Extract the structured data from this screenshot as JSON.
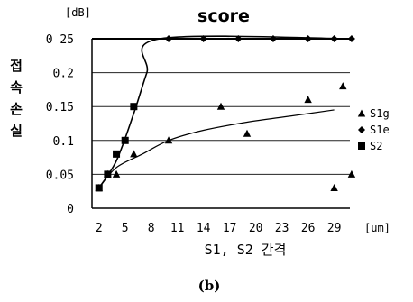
{
  "chart_data": {
    "type": "scatter",
    "title": "score",
    "ylabel": "접속손실",
    "yunit": "[dB]",
    "xlabel": "S1, S2 간격",
    "xunit": "[um]",
    "caption": "(b)",
    "x_ticks": [
      "2",
      "5",
      "8",
      "11",
      "14",
      "17",
      "20",
      "23",
      "26",
      "29"
    ],
    "y_ticks": [
      "0",
      "0.05",
      "0.1",
      "0.15",
      "0.2",
      "0 25"
    ],
    "xlim": [
      1.2,
      30.8
    ],
    "ylim": [
      0,
      0.25
    ],
    "grid": "horizontal",
    "legend_position": "right",
    "series": [
      {
        "name": "S1g",
        "marker": "triangle",
        "points": [
          [
            2,
            0.03
          ],
          [
            3,
            0.05
          ],
          [
            4,
            0.05
          ],
          [
            6,
            0.08
          ],
          [
            10,
            0.1
          ],
          [
            16,
            0.15
          ],
          [
            19,
            0.11
          ],
          [
            26,
            0.16
          ],
          [
            29,
            0.03
          ],
          [
            30,
            0.18
          ],
          [
            31,
            0.05
          ]
        ]
      },
      {
        "name": "S1e",
        "marker": "diamond",
        "points": [
          [
            10,
            0.25
          ],
          [
            14,
            0.25
          ],
          [
            18,
            0.25
          ],
          [
            22,
            0.25
          ],
          [
            26,
            0.25
          ],
          [
            29,
            0.25
          ],
          [
            31,
            0.25
          ]
        ]
      },
      {
        "name": "S2",
        "marker": "square",
        "points": [
          [
            2,
            0.03
          ],
          [
            3,
            0.05
          ],
          [
            4,
            0.08
          ],
          [
            5,
            0.1
          ],
          [
            6,
            0.15
          ]
        ]
      }
    ],
    "trend_lines": [
      {
        "series": "S1e",
        "points": [
          [
            2,
            0.03
          ],
          [
            4,
            0.07
          ],
          [
            6,
            0.14
          ],
          [
            7.5,
            0.2
          ],
          [
            9,
            0.25
          ],
          [
            31,
            0.25
          ]
        ]
      },
      {
        "series": "S1g",
        "points": [
          [
            2,
            0.03
          ],
          [
            4,
            0.06
          ],
          [
            7,
            0.08
          ],
          [
            10,
            0.1
          ],
          [
            14,
            0.115
          ],
          [
            19,
            0.127
          ],
          [
            24,
            0.136
          ],
          [
            29,
            0.145
          ]
        ]
      }
    ]
  }
}
